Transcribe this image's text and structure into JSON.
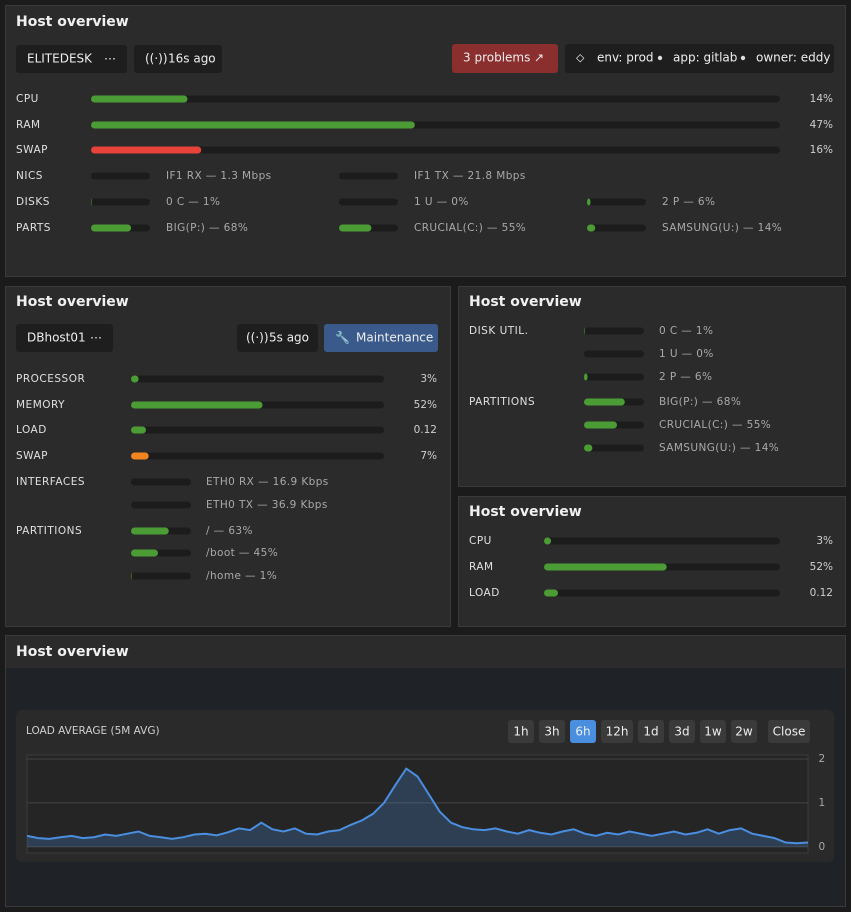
{
  "w1": {
    "title": "Host overview",
    "host": "ELITEDESK",
    "age": "16s ago",
    "problems": "3 problems",
    "tags": [
      "env: prod",
      "app: gitlab",
      "owner: eddy"
    ],
    "bars": [
      {
        "label": "CPU",
        "value": 14,
        "text": "14%"
      },
      {
        "label": "RAM",
        "value": 47,
        "text": "47%"
      },
      {
        "label": "SWAP",
        "value": 16,
        "text": "16%"
      }
    ],
    "groups": [
      {
        "label": "NICS",
        "items": [
          {
            "text": "IF1 RX — 1.3 Mbps"
          },
          {
            "text": "IF1 TX — 21.8 Mbps"
          }
        ]
      },
      {
        "label": "DISKS",
        "items": [
          {
            "text": "0 C — 1%",
            "value": 1
          },
          {
            "text": "1 U — 0%",
            "value": 0
          },
          {
            "text": "2 P — 6%",
            "value": 6
          }
        ]
      },
      {
        "label": "PARTS",
        "items": [
          {
            "text": "BIG(P:) — 68%",
            "value": 68
          },
          {
            "text": "CRUCIAL(C:) — 55%",
            "value": 55
          },
          {
            "text": "SAMSUNG(U:) — 14%",
            "value": 14
          }
        ]
      }
    ]
  },
  "w2": {
    "title": "Host overview",
    "host": "DBhost01",
    "age": "5s ago",
    "button": "Maintenance",
    "bars": [
      {
        "label": "PROCESSOR",
        "value": 3,
        "text": "3%"
      },
      {
        "label": "MEMORY",
        "value": 52,
        "text": "52%"
      },
      {
        "label": "LOAD",
        "text": "0.12"
      },
      {
        "label": "SWAP",
        "value": 7,
        "text": "7%"
      }
    ],
    "groups": [
      {
        "label": "INTERFACES",
        "items": [
          {
            "text": "ETH0 RX — 16.9 Kbps"
          },
          {
            "text": "ETH0 TX — 36.9 Kbps"
          }
        ]
      },
      {
        "label": "PARTITIONS",
        "items": [
          {
            "text": "/ — 63%",
            "value": 63
          },
          {
            "text": "/boot — 45%",
            "value": 45
          },
          {
            "text": "/home — 1%",
            "value": 1
          }
        ]
      }
    ]
  },
  "w3": {
    "title": "Host overview",
    "groups": [
      {
        "label": "DISK UTIL.",
        "items": [
          {
            "text": "0 C — 1%",
            "value": 1
          },
          {
            "text": "1 U — 0%",
            "value": 0
          },
          {
            "text": "2 P — 6%",
            "value": 6
          }
        ]
      },
      {
        "label": "PARTITIONS",
        "items": [
          {
            "text": "BIG(P:) — 68%",
            "value": 68
          },
          {
            "text": "CRUCIAL(C:) — 55%",
            "value": 55
          },
          {
            "text": "SAMSUNG(U:) — 14%",
            "value": 14
          }
        ]
      }
    ]
  },
  "w4": {
    "title": "Host overview",
    "bars": [
      {
        "label": "CPU",
        "value": 3,
        "text": "3%"
      },
      {
        "label": "RAM",
        "value": 52,
        "text": "52%"
      },
      {
        "label": "LOAD",
        "text": "0.12"
      }
    ]
  },
  "w5": {
    "title": "Host overview",
    "periods": [
      "1h",
      "3h",
      "6h",
      "12h",
      "1d",
      "3d",
      "1w",
      "2w"
    ],
    "active_period": "6h",
    "close": "Close",
    "chart_data": {
      "type": "area",
      "title": "LOAD AVERAGE (5M AVG)",
      "color": "#4a8ee0",
      "ylim": [
        -0.14,
        2.09
      ],
      "yticks": [
        0,
        1,
        2
      ],
      "grid": true,
      "values": [
        0.25,
        0.2,
        0.18,
        0.22,
        0.25,
        0.2,
        0.22,
        0.28,
        0.25,
        0.3,
        0.35,
        0.25,
        0.22,
        0.18,
        0.22,
        0.28,
        0.3,
        0.26,
        0.33,
        0.42,
        0.38,
        0.55,
        0.4,
        0.35,
        0.42,
        0.3,
        0.28,
        0.35,
        0.38,
        0.5,
        0.6,
        0.75,
        1.0,
        1.4,
        1.78,
        1.6,
        1.2,
        0.8,
        0.55,
        0.45,
        0.4,
        0.38,
        0.42,
        0.35,
        0.3,
        0.38,
        0.32,
        0.28,
        0.35,
        0.4,
        0.3,
        0.25,
        0.32,
        0.28,
        0.35,
        0.3,
        0.25,
        0.3,
        0.35,
        0.28,
        0.32,
        0.4,
        0.3,
        0.38,
        0.42,
        0.3,
        0.25,
        0.2,
        0.1,
        0.08,
        0.1
      ]
    }
  }
}
